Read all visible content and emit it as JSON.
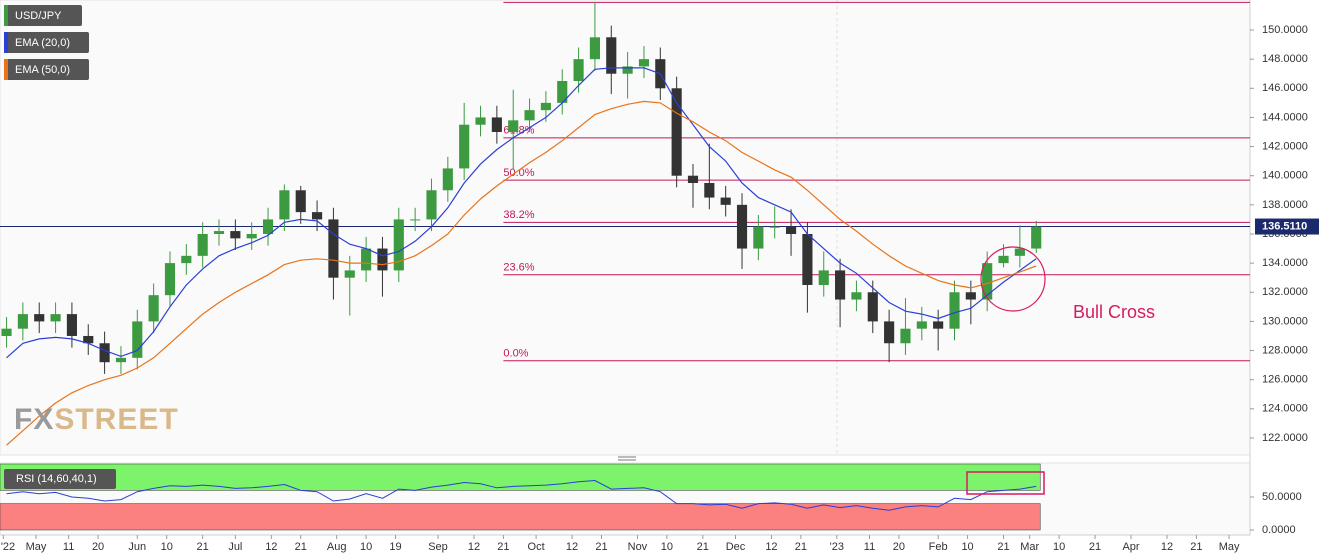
{
  "chart_data": {
    "type": "candlestick",
    "title": "USD/JPY",
    "up_color": "#3c9a40",
    "down_color": "#333333",
    "x": [
      2,
      7,
      12,
      17,
      22,
      27,
      32,
      37,
      42,
      47,
      52,
      57,
      62,
      67,
      72,
      77,
      82,
      87,
      92,
      97,
      102,
      107,
      112,
      117,
      122,
      127,
      132,
      137,
      142,
      147,
      152,
      157,
      162,
      167,
      172,
      177,
      182,
      187,
      192,
      197,
      202,
      207,
      212,
      217,
      222,
      227,
      232,
      237,
      242,
      247,
      252,
      257,
      262,
      267,
      272,
      277,
      282,
      287,
      292,
      297,
      302,
      307,
      312,
      317
    ],
    "open": [
      129.0,
      129.5,
      130.5,
      130.0,
      130.5,
      129.0,
      128.5,
      127.2,
      127.5,
      130.0,
      131.8,
      134.0,
      134.5,
      136.0,
      136.2,
      135.7,
      136.0,
      137.0,
      139.0,
      137.5,
      137.0,
      133.0,
      133.5,
      135.0,
      133.5,
      137.0,
      137.0,
      139.0,
      140.5,
      143.5,
      144.0,
      143.0,
      143.8,
      144.5,
      145.0,
      146.5,
      148.0,
      149.5,
      147.0,
      147.5,
      148.0,
      146.0,
      140.0,
      139.5,
      138.5,
      138.0,
      135.0,
      136.5,
      136.5,
      136.0,
      132.5,
      133.5,
      131.5,
      132.0,
      130.0,
      128.5,
      129.5,
      130.0,
      129.5,
      132.0,
      131.5,
      134.0,
      134.5,
      135.0
    ],
    "high": [
      130.3,
      131.3,
      131.3,
      131.3,
      131.3,
      129.8,
      129.3,
      128.3,
      130.8,
      132.6,
      134.8,
      135.3,
      136.8,
      137.0,
      137.0,
      136.8,
      137.8,
      139.4,
      139.3,
      138.3,
      137.8,
      134.5,
      135.8,
      135.8,
      137.8,
      137.8,
      139.8,
      141.3,
      145.0,
      144.8,
      144.8,
      145.9,
      145.3,
      145.8,
      147.3,
      148.8,
      151.9,
      150.3,
      148.5,
      148.9,
      148.8,
      146.8,
      140.8,
      142.2,
      139.3,
      138.8,
      137.3,
      137.9,
      137.7,
      136.8,
      134.8,
      134.3,
      132.8,
      132.8,
      130.8,
      131.6,
      131.0,
      130.8,
      132.8,
      132.8,
      134.8,
      135.3,
      136.6,
      136.9
    ],
    "low": [
      128.2,
      128.7,
      129.2,
      129.2,
      128.2,
      127.7,
      126.4,
      126.4,
      126.7,
      129.2,
      131.0,
      133.2,
      133.7,
      135.2,
      134.9,
      134.9,
      135.2,
      136.2,
      136.7,
      136.2,
      131.5,
      130.4,
      132.7,
      131.7,
      132.7,
      136.2,
      136.2,
      138.2,
      139.7,
      142.7,
      142.2,
      140.4,
      143.0,
      143.7,
      144.2,
      145.7,
      147.2,
      145.6,
      145.3,
      146.7,
      145.2,
      139.2,
      137.8,
      137.7,
      137.2,
      133.6,
      134.2,
      135.7,
      134.5,
      130.6,
      131.7,
      129.6,
      130.7,
      129.2,
      127.2,
      127.7,
      128.7,
      128.0,
      128.7,
      129.8,
      130.7,
      133.7,
      133.7,
      134.7
    ],
    "close": [
      129.5,
      130.5,
      130.0,
      130.5,
      129.0,
      128.5,
      127.2,
      127.5,
      130.0,
      131.8,
      134.0,
      134.5,
      136.0,
      136.2,
      135.7,
      136.0,
      137.0,
      139.0,
      137.5,
      137.0,
      133.0,
      133.5,
      135.0,
      133.5,
      137.0,
      137.0,
      139.0,
      140.5,
      143.5,
      144.0,
      143.0,
      143.8,
      144.5,
      145.0,
      146.5,
      148.0,
      149.5,
      147.0,
      147.5,
      148.0,
      146.0,
      140.0,
      139.5,
      138.5,
      138.0,
      135.0,
      136.5,
      136.5,
      136.0,
      132.5,
      133.5,
      131.5,
      132.0,
      130.0,
      128.5,
      129.5,
      130.0,
      129.5,
      132.0,
      131.5,
      134.0,
      134.5,
      135.0,
      136.5
    ],
    "series": [
      {
        "name": "EMA (20,0)",
        "color": "#2a3fd6",
        "values": [
          127.5,
          128.5,
          128.8,
          128.9,
          128.8,
          128.5,
          128.0,
          127.6,
          128.0,
          129.3,
          131.0,
          132.5,
          133.6,
          134.5,
          135.0,
          135.4,
          135.9,
          136.8,
          137.0,
          136.9,
          136.0,
          135.3,
          135.0,
          134.5,
          134.8,
          135.5,
          136.5,
          137.8,
          139.5,
          140.8,
          141.8,
          142.6,
          143.3,
          144.0,
          145.0,
          146.2,
          147.3,
          147.4,
          147.4,
          147.4,
          147.0,
          145.0,
          143.5,
          142.0,
          141.0,
          139.5,
          138.5,
          138.0,
          137.5,
          136.0,
          135.0,
          134.0,
          133.3,
          132.3,
          131.3,
          130.7,
          130.5,
          130.2,
          130.6,
          130.9,
          131.8,
          132.7,
          133.5,
          134.3
        ]
      },
      {
        "name": "EMA (50,0)",
        "color": "#e8731a",
        "values": [
          121.5,
          122.5,
          123.5,
          124.4,
          125.1,
          125.6,
          126.0,
          126.3,
          126.8,
          127.5,
          128.5,
          129.5,
          130.5,
          131.3,
          132.0,
          132.6,
          133.2,
          133.9,
          134.2,
          134.3,
          134.2,
          134.0,
          134.0,
          133.9,
          134.1,
          134.5,
          135.2,
          136.0,
          137.3,
          138.4,
          139.3,
          140.1,
          140.9,
          141.6,
          142.4,
          143.3,
          144.2,
          144.6,
          144.9,
          145.1,
          145.0,
          144.3,
          143.7,
          143.0,
          142.4,
          141.6,
          141.0,
          140.4,
          139.9,
          139.0,
          138.0,
          137.0,
          136.2,
          135.3,
          134.5,
          133.8,
          133.3,
          132.8,
          132.5,
          132.3,
          132.6,
          133.0,
          133.4,
          133.8
        ]
      }
    ],
    "xlim": [
      0,
      382.4
    ],
    "ylim": [
      120.83,
      152.06
    ],
    "grid": false,
    "xticks": [
      {
        "value": 1,
        "label": "'22"
      },
      {
        "value": 11,
        "label": "May"
      },
      {
        "value": 21,
        "label": "11"
      },
      {
        "value": 30,
        "label": "20"
      },
      {
        "value": 42,
        "label": "Jun"
      },
      {
        "value": 51,
        "label": "10"
      },
      {
        "value": 62,
        "label": "21"
      },
      {
        "value": 72,
        "label": "Jul"
      },
      {
        "value": 83,
        "label": "12"
      },
      {
        "value": 92,
        "label": "21"
      },
      {
        "value": 103,
        "label": "Aug"
      },
      {
        "value": 112,
        "label": "10"
      },
      {
        "value": 121,
        "label": "19"
      },
      {
        "value": 134,
        "label": "Sep"
      },
      {
        "value": 145,
        "label": "12"
      },
      {
        "value": 154,
        "label": "21"
      },
      {
        "value": 164,
        "label": "Oct"
      },
      {
        "value": 175,
        "label": "12"
      },
      {
        "value": 184,
        "label": "21"
      },
      {
        "value": 195,
        "label": "Nov"
      },
      {
        "value": 204,
        "label": "10"
      },
      {
        "value": 215,
        "label": "21"
      },
      {
        "value": 225,
        "label": "Dec"
      },
      {
        "value": 236,
        "label": "12"
      },
      {
        "value": 245,
        "label": "21"
      },
      {
        "value": 256,
        "label": "'23"
      },
      {
        "value": 266,
        "label": "11"
      },
      {
        "value": 275,
        "label": "20"
      },
      {
        "value": 287,
        "label": "Feb"
      },
      {
        "value": 296,
        "label": "10"
      },
      {
        "value": 307,
        "label": "21"
      },
      {
        "value": 315,
        "label": "Mar"
      },
      {
        "value": 324,
        "label": "10"
      },
      {
        "value": 335,
        "label": "21"
      },
      {
        "value": 346,
        "label": "Apr"
      },
      {
        "value": 357,
        "label": "12"
      },
      {
        "value": 366,
        "label": "21"
      },
      {
        "value": 376,
        "label": "May"
      }
    ],
    "yticks": [
      {
        "value": 122,
        "label": "122.0000"
      },
      {
        "value": 124,
        "label": "124.0000"
      },
      {
        "value": 126,
        "label": "126.0000"
      },
      {
        "value": 128,
        "label": "128.0000"
      },
      {
        "value": 130,
        "label": "130.0000"
      },
      {
        "value": 132,
        "label": "132.0000"
      },
      {
        "value": 134,
        "label": "134.0000"
      },
      {
        "value": 136,
        "label": "136.0000"
      },
      {
        "value": 138,
        "label": "138.0000"
      },
      {
        "value": 140,
        "label": "140.0000"
      },
      {
        "value": 142,
        "label": "142.0000"
      },
      {
        "value": 144,
        "label": "144.0000"
      },
      {
        "value": 146,
        "label": "146.0000"
      },
      {
        "value": 148,
        "label": "148.0000"
      },
      {
        "value": 150,
        "label": "150.0000"
      }
    ],
    "last_price": {
      "value": 136.511,
      "label": "136.5110"
    },
    "fib_start": 154,
    "fib_color": "#c2185b",
    "fib": [
      {
        "label": "0.0%",
        "price": 127.3
      },
      {
        "label": "23.6%",
        "price": 133.2
      },
      {
        "label": "38.2%",
        "price": 136.8
      },
      {
        "label": "50.0%",
        "price": 139.7
      },
      {
        "label": "61.8%",
        "price": 142.6
      },
      {
        "price": 151.9
      }
    ],
    "annotation": "Bull Cross",
    "watermark": [
      "FX",
      "STREET"
    ],
    "rsi": {
      "name": "RSI (14,60,40,1)",
      "color": "#2a3fd6",
      "upper": 60,
      "lower": 40,
      "ylim": [
        0,
        100
      ],
      "yticks": [
        {
          "value": 0,
          "label": "0.0000"
        },
        {
          "value": 50,
          "label": "50.0000"
        }
      ],
      "values": [
        55,
        58,
        55,
        57,
        50,
        48,
        44,
        46,
        58,
        63,
        67,
        66,
        68,
        66,
        63,
        64,
        66,
        69,
        60,
        58,
        44,
        47,
        55,
        48,
        62,
        60,
        65,
        68,
        72,
        70,
        64,
        66,
        67,
        68,
        70,
        73,
        75,
        62,
        63,
        64,
        58,
        40,
        40,
        38,
        39,
        33,
        40,
        41,
        39,
        33,
        38,
        34,
        37,
        33,
        30,
        35,
        37,
        35,
        48,
        46,
        58,
        60,
        62,
        66
      ]
    }
  }
}
